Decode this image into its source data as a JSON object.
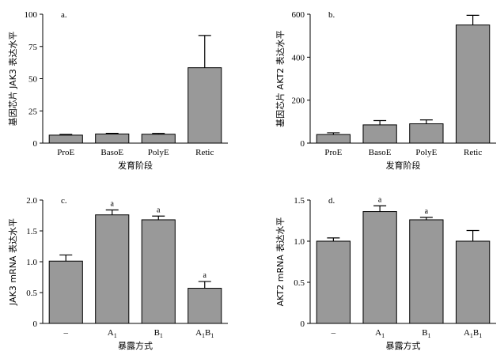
{
  "chart_data": [
    {
      "type": "bar",
      "panel_label": "a.",
      "categories": [
        "ProE",
        "BasoE",
        "PolyE",
        "Retic"
      ],
      "values": [
        6.2,
        7.1,
        6.9,
        58.5
      ],
      "errors": [
        0.6,
        0.5,
        0.6,
        25
      ],
      "sig": [
        "",
        "",
        "",
        ""
      ],
      "xlabel": "发育阶段",
      "ylabel": "基因芯片 JAK3 表达水平",
      "ylim": [
        0,
        100
      ],
      "yticks": [
        "0",
        "25",
        "50",
        "75",
        "100"
      ],
      "bar_color": "#999999",
      "grid": false
    },
    {
      "type": "bar",
      "panel_label": "b.",
      "categories": [
        "ProE",
        "BasoE",
        "PolyE",
        "Retic"
      ],
      "values": [
        40,
        85,
        90,
        550
      ],
      "errors": [
        8,
        20,
        18,
        45
      ],
      "sig": [
        "",
        "",
        "",
        ""
      ],
      "xlabel": "发育阶段",
      "ylabel": "基因芯片 AKT2 表达水平",
      "ylim": [
        0,
        600
      ],
      "yticks": [
        "0",
        "200",
        "400",
        "600"
      ],
      "bar_color": "#999999",
      "grid": false
    },
    {
      "type": "bar",
      "panel_label": "c.",
      "categories": [
        "–",
        "A1",
        "B1",
        "A1B1"
      ],
      "values": [
        1.01,
        1.76,
        1.68,
        0.57
      ],
      "errors": [
        0.1,
        0.08,
        0.06,
        0.11
      ],
      "sig": [
        "",
        "a",
        "a",
        "a"
      ],
      "xlabel": "暴露方式",
      "ylabel": "JAK3 mRNA 表达水平",
      "ylim": [
        0,
        2.0
      ],
      "yticks": [
        "0",
        "0.5",
        "1.0",
        "1.5",
        "2.0"
      ],
      "bar_color": "#999999",
      "grid": false
    },
    {
      "type": "bar",
      "panel_label": "d.",
      "categories": [
        "–",
        "A1",
        "B1",
        "A1B1"
      ],
      "values": [
        1.0,
        1.36,
        1.26,
        1.0
      ],
      "errors": [
        0.04,
        0.07,
        0.03,
        0.13
      ],
      "sig": [
        "",
        "a",
        "a",
        ""
      ],
      "xlabel": "暴露方式",
      "ylabel": "AKT2 mRNA 表达水平",
      "ylim": [
        0,
        1.5
      ],
      "yticks": [
        "0",
        "0.5",
        "1.0",
        "1.5"
      ],
      "bar_color": "#999999",
      "grid": false
    }
  ]
}
